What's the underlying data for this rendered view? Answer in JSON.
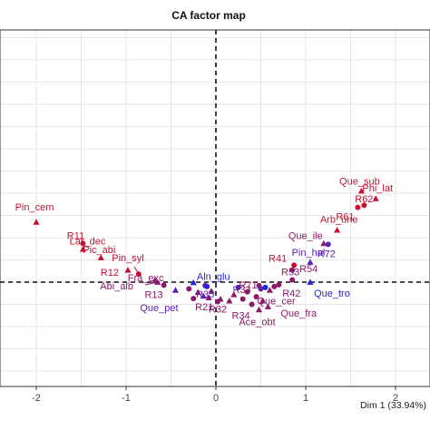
{
  "chart_data": {
    "type": "scatter",
    "title": "CA factor map",
    "xlabel": "Dim 1 (33.94%)",
    "ylabel": "",
    "xlim": [
      -2.2,
      2.0
    ],
    "ylim": [
      -1.15,
      2.4
    ],
    "x_ticks": [
      -2,
      -1,
      0,
      1,
      2
    ],
    "grid": true,
    "colors": {
      "high": "#c8102e",
      "mid": "#8b1a6b",
      "low": "#5b21b6",
      "blue": "#2323d8"
    },
    "points": [
      {
        "label": "Que_sub",
        "x": 1.62,
        "y": 2.05,
        "shape": "triangle",
        "color": "high"
      },
      {
        "label": "Phi_lat",
        "x": 1.78,
        "y": 1.88,
        "shape": "triangle",
        "color": "high"
      },
      {
        "label": "R62",
        "x": 1.65,
        "y": 1.73,
        "shape": "circle",
        "color": "high"
      },
      {
        "label": "R61",
        "x": 1.58,
        "y": 1.68,
        "shape": "circle",
        "color": "high"
      },
      {
        "label": "Pin_cem",
        "x": -2.0,
        "y": 1.35,
        "shape": "triangle",
        "color": "high"
      },
      {
        "label": "Arb_une",
        "x": 1.35,
        "y": 1.17,
        "shape": "triangle",
        "color": "high"
      },
      {
        "label": "R11",
        "x": -1.48,
        "y": 0.87,
        "shape": "circle",
        "color": "high"
      },
      {
        "label": "Que_ile",
        "x": 1.2,
        "y": 0.87,
        "shape": "triangle",
        "color": "mid"
      },
      {
        "label": "Lar_dec",
        "x": -1.48,
        "y": 0.74,
        "shape": "triangle",
        "color": "high"
      },
      {
        "label": "R72",
        "x": 1.25,
        "y": 0.85,
        "shape": "circle",
        "color": "low"
      },
      {
        "label": "Pic_abi",
        "x": -1.28,
        "y": 0.55,
        "shape": "triangle",
        "color": "high"
      },
      {
        "label": "Pin_hal",
        "x": 1.05,
        "y": 0.45,
        "shape": "triangle",
        "color": "low"
      },
      {
        "label": "R41",
        "x": 0.87,
        "y": 0.38,
        "shape": "circle",
        "color": "high"
      },
      {
        "label": "R54",
        "x": 0.85,
        "y": 0.27,
        "shape": "circle",
        "color": "mid"
      },
      {
        "label": "Pin_syl",
        "x": -0.98,
        "y": 0.27,
        "shape": "triangle",
        "color": "high"
      },
      {
        "label": "R12",
        "x": -0.86,
        "y": 0.18,
        "shape": "circle",
        "color": "high"
      },
      {
        "label": "Fra_exc",
        "x": -0.68,
        "y": 0.04,
        "shape": "triangle",
        "color": "mid"
      },
      {
        "label": "Abi_alb",
        "x": -0.65,
        "y": 0.0,
        "shape": "triangle",
        "color": "mid"
      },
      {
        "label": "Aln_glu",
        "x": -0.25,
        "y": -0.01,
        "shape": "triangle",
        "color": "blue"
      },
      {
        "label": "R53",
        "x": 0.85,
        "y": 0.05,
        "shape": "circle",
        "color": "mid"
      },
      {
        "label": "R71",
        "x": 0.48,
        "y": -0.08,
        "shape": "circle",
        "color": "mid"
      },
      {
        "label": "Que_tro",
        "x": 1.05,
        "y": 0.0,
        "shape": "triangle",
        "color": "blue"
      },
      {
        "label": "R42",
        "x": 0.7,
        "y": -0.06,
        "shape": "circle",
        "color": "mid"
      },
      {
        "label": "R35",
        "x": -0.12,
        "y": -0.08,
        "shape": "circle",
        "color": "low"
      },
      {
        "label": "R13",
        "x": -0.58,
        "y": -0.07,
        "shape": "circle",
        "color": "mid"
      },
      {
        "label": "Que_pet",
        "x": -0.45,
        "y": -0.18,
        "shape": "triangle",
        "color": "low"
      },
      {
        "label": "R21",
        "x": -0.25,
        "y": -0.37,
        "shape": "circle",
        "color": "mid"
      },
      {
        "label": "R33",
        "x": 0.45,
        "y": -0.33,
        "shape": "circle",
        "color": "mid"
      },
      {
        "label": "Que_cer",
        "x": 0.52,
        "y": -0.42,
        "shape": "triangle",
        "color": "mid"
      },
      {
        "label": "R32",
        "x": 0.02,
        "y": -0.44,
        "shape": "circle",
        "color": "mid"
      },
      {
        "label": "R34",
        "x": 0.4,
        "y": -0.5,
        "shape": "circle",
        "color": "mid"
      },
      {
        "label": "Que_fra",
        "x": 0.58,
        "y": -0.55,
        "shape": "triangle",
        "color": "mid"
      },
      {
        "label": "Ace_obt",
        "x": 0.48,
        "y": -0.62,
        "shape": "triangle",
        "color": "mid"
      }
    ],
    "extra_points": [
      {
        "x": -0.2,
        "y": -0.23,
        "shape": "triangle",
        "color": "mid"
      },
      {
        "x": -0.05,
        "y": -0.2,
        "shape": "triangle",
        "color": "mid"
      },
      {
        "x": -0.08,
        "y": -0.35,
        "shape": "triangle",
        "color": "mid"
      },
      {
        "x": -0.14,
        "y": -0.31,
        "shape": "triangle",
        "color": "low"
      },
      {
        "x": 0.05,
        "y": -0.38,
        "shape": "triangle",
        "color": "mid"
      },
      {
        "x": 0.15,
        "y": -0.42,
        "shape": "triangle",
        "color": "mid"
      },
      {
        "x": 0.3,
        "y": -0.38,
        "shape": "circle",
        "color": "mid"
      },
      {
        "x": 0.25,
        "y": -0.12,
        "shape": "circle",
        "color": "blue"
      },
      {
        "x": 0.5,
        "y": -0.15,
        "shape": "circle",
        "color": "low"
      },
      {
        "x": 0.55,
        "y": -0.12,
        "shape": "circle",
        "color": "blue"
      },
      {
        "x": 0.6,
        "y": -0.18,
        "shape": "triangle",
        "color": "mid"
      },
      {
        "x": 0.35,
        "y": -0.22,
        "shape": "circle",
        "color": "mid"
      },
      {
        "x": 0.65,
        "y": -0.1,
        "shape": "circle",
        "color": "mid"
      },
      {
        "x": -0.3,
        "y": -0.15,
        "shape": "circle",
        "color": "mid"
      },
      {
        "x": 0.2,
        "y": -0.28,
        "shape": "triangle",
        "color": "mid"
      },
      {
        "x": -0.1,
        "y": -0.1,
        "shape": "circle",
        "color": "blue"
      }
    ]
  }
}
